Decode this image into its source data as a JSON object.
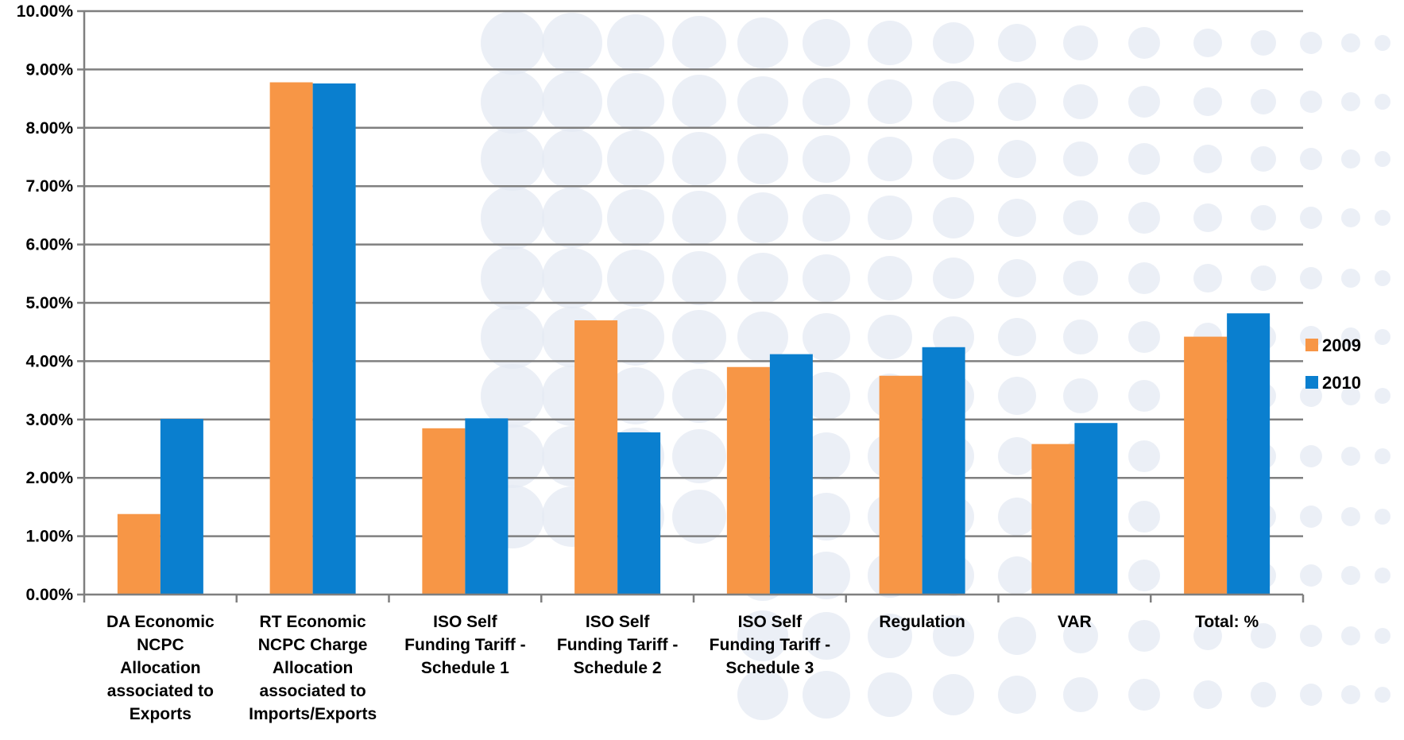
{
  "chart_data": {
    "type": "bar",
    "title": "",
    "xlabel": "",
    "ylabel": "",
    "ylim": [
      0,
      10
    ],
    "y_ticks": [
      "0.00%",
      "1.00%",
      "2.00%",
      "3.00%",
      "4.00%",
      "5.00%",
      "6.00%",
      "7.00%",
      "8.00%",
      "9.00%",
      "10.00%"
    ],
    "grid": true,
    "legend_position": "right",
    "categories": [
      [
        "DA Economic",
        "NCPC",
        "Allocation",
        "associated to",
        "Exports"
      ],
      [
        "RT Economic",
        "NCPC Charge",
        "Allocation",
        "associated to",
        "Imports/Exports"
      ],
      [
        "ISO Self",
        "Funding Tariff -",
        "Schedule 1"
      ],
      [
        "ISO Self",
        "Funding Tariff -",
        "Schedule 2"
      ],
      [
        "ISO Self",
        "Funding Tariff -",
        "Schedule 3"
      ],
      [
        "Regulation"
      ],
      [
        "VAR"
      ],
      [
        "Total: %"
      ]
    ],
    "series": [
      {
        "name": "2009",
        "color": "#F79646",
        "values": [
          1.38,
          8.78,
          2.85,
          4.7,
          3.9,
          3.75,
          2.58,
          4.42
        ]
      },
      {
        "name": "2010",
        "color": "#0A7FCF",
        "values": [
          3.01,
          8.76,
          3.02,
          2.78,
          4.12,
          4.24,
          2.94,
          4.82
        ]
      }
    ]
  }
}
